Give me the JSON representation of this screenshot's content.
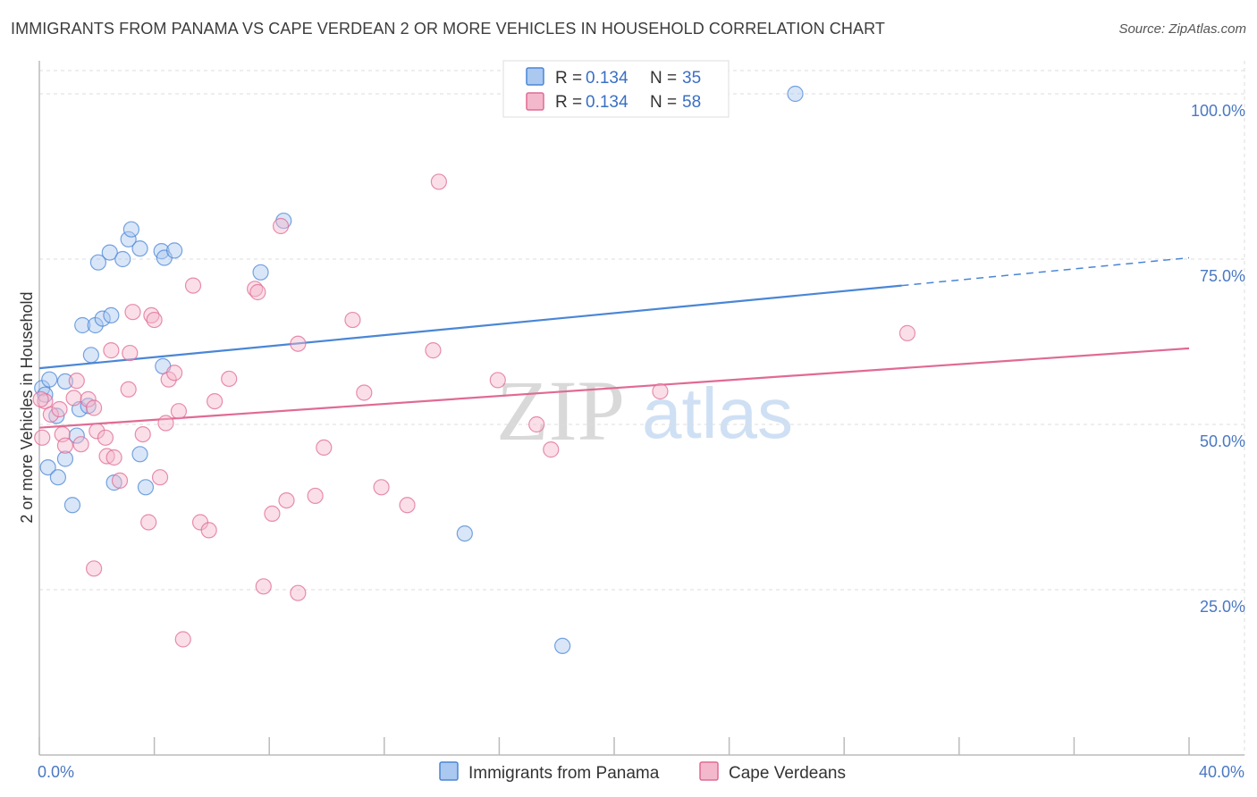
{
  "title": "IMMIGRANTS FROM PANAMA VS CAPE VERDEAN 2 OR MORE VEHICLES IN HOUSEHOLD CORRELATION CHART",
  "source": "Source: ZipAtlas.com",
  "watermark": {
    "zip": "ZIP",
    "atlas": "atlas"
  },
  "colors": {
    "blue": "#4a86d6",
    "blue_fill": "#aac8f0",
    "pink": "#e06a94",
    "pink_fill": "#f4b8cc",
    "grid": "#dddddd",
    "axis_text": "#4a78c2"
  },
  "legend": {
    "rows": [
      {
        "r_label": "R = ",
        "r_value": "0.134",
        "n_label": "N = ",
        "n_value": "35"
      },
      {
        "r_label": "R = ",
        "r_value": "0.134",
        "n_label": "N = ",
        "n_value": "58"
      }
    ]
  },
  "chart_data": {
    "type": "scatter",
    "title": "IMMIGRANTS FROM PANAMA VS CAPE VERDEAN 2 OR MORE VEHICLES IN HOUSEHOLD CORRELATION CHART",
    "xlabel": "",
    "ylabel": "2 or more Vehicles in Household",
    "xlim": [
      0,
      40
    ],
    "ylim": [
      0,
      105
    ],
    "x_ticks_labels": [
      "0.0%",
      "40.0%"
    ],
    "y_ticks": [
      25,
      50,
      75,
      100
    ],
    "y_ticks_labels": [
      "25.0%",
      "50.0%",
      "75.0%",
      "100.0%"
    ],
    "grid": true,
    "legend_position": "top-center",
    "series": [
      {
        "name": "Immigrants from Panama",
        "color": "blue",
        "trend": {
          "x": [
            0,
            30
          ],
          "y": [
            58.5,
            71
          ],
          "dashed_to_x": 40,
          "dashed_to_y": 75.2
        },
        "points": [
          [
            0.1,
            55.5
          ],
          [
            0.2,
            54.5
          ],
          [
            0.35,
            56.8
          ],
          [
            0.6,
            51.3
          ],
          [
            0.9,
            56.5
          ],
          [
            0.3,
            43.5
          ],
          [
            0.65,
            42.0
          ],
          [
            0.9,
            44.8
          ],
          [
            1.15,
            37.8
          ],
          [
            1.3,
            48.3
          ],
          [
            1.4,
            52.3
          ],
          [
            1.7,
            52.8
          ],
          [
            1.5,
            65.0
          ],
          [
            1.8,
            60.5
          ],
          [
            1.95,
            65.0
          ],
          [
            2.2,
            66.0
          ],
          [
            2.5,
            66.5
          ],
          [
            2.05,
            74.5
          ],
          [
            2.45,
            76.0
          ],
          [
            2.9,
            75.0
          ],
          [
            3.1,
            78.0
          ],
          [
            3.2,
            79.5
          ],
          [
            3.5,
            76.6
          ],
          [
            4.25,
            76.2
          ],
          [
            4.35,
            75.2
          ],
          [
            4.7,
            76.3
          ],
          [
            3.5,
            45.5
          ],
          [
            2.6,
            41.2
          ],
          [
            3.7,
            40.5
          ],
          [
            4.3,
            58.8
          ],
          [
            7.7,
            73.0
          ],
          [
            8.5,
            80.8
          ],
          [
            14.8,
            33.5
          ],
          [
            18.2,
            16.5
          ],
          [
            26.3,
            100.0
          ]
        ]
      },
      {
        "name": "Cape Verdeans",
        "color": "pink",
        "trend": {
          "x": [
            0,
            40
          ],
          "y": [
            49.5,
            61.5
          ]
        },
        "points": [
          [
            0.1,
            48.0
          ],
          [
            0.2,
            53.5
          ],
          [
            0.4,
            51.5
          ],
          [
            0.7,
            52.3
          ],
          [
            0.8,
            48.5
          ],
          [
            0.9,
            46.8
          ],
          [
            1.2,
            54.0
          ],
          [
            1.3,
            56.6
          ],
          [
            1.45,
            47.0
          ],
          [
            1.7,
            53.8
          ],
          [
            1.9,
            52.5
          ],
          [
            2.0,
            49.0
          ],
          [
            2.3,
            48.0
          ],
          [
            2.35,
            45.2
          ],
          [
            2.6,
            45.0
          ],
          [
            1.9,
            28.2
          ],
          [
            2.8,
            41.5
          ],
          [
            3.1,
            55.3
          ],
          [
            3.15,
            60.8
          ],
          [
            3.25,
            67.0
          ],
          [
            3.6,
            48.5
          ],
          [
            3.8,
            35.2
          ],
          [
            4.2,
            42.0
          ],
          [
            4.4,
            50.2
          ],
          [
            4.5,
            56.8
          ],
          [
            4.7,
            57.8
          ],
          [
            3.9,
            66.5
          ],
          [
            4.0,
            65.8
          ],
          [
            2.5,
            61.2
          ],
          [
            4.85,
            52.0
          ],
          [
            5.35,
            71.0
          ],
          [
            5.0,
            17.5
          ],
          [
            5.6,
            35.2
          ],
          [
            5.9,
            34.0
          ],
          [
            6.1,
            53.5
          ],
          [
            6.6,
            56.9
          ],
          [
            7.5,
            70.5
          ],
          [
            7.6,
            70.0
          ],
          [
            7.8,
            25.5
          ],
          [
            8.1,
            36.5
          ],
          [
            8.4,
            80.0
          ],
          [
            8.6,
            38.5
          ],
          [
            9.0,
            24.5
          ],
          [
            9.0,
            62.2
          ],
          [
            9.6,
            39.2
          ],
          [
            9.9,
            46.5
          ],
          [
            10.9,
            65.8
          ],
          [
            11.3,
            54.8
          ],
          [
            11.9,
            40.5
          ],
          [
            12.8,
            37.8
          ],
          [
            13.7,
            61.2
          ],
          [
            13.9,
            86.7
          ],
          [
            15.95,
            56.7
          ],
          [
            17.3,
            50.0
          ],
          [
            17.8,
            46.2
          ],
          [
            21.6,
            55.0
          ],
          [
            30.2,
            63.8
          ],
          [
            0.05,
            53.8
          ]
        ]
      }
    ]
  },
  "bottom_legend": {
    "items": [
      "Immigrants from Panama",
      "Cape Verdeans"
    ]
  }
}
